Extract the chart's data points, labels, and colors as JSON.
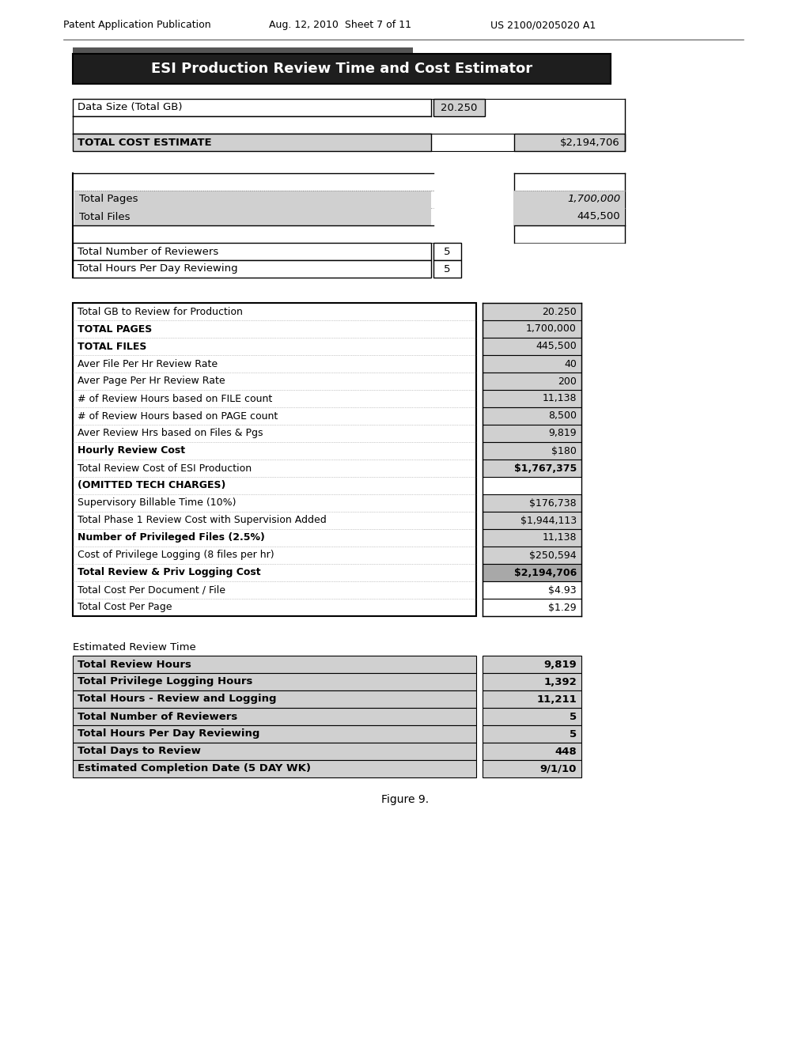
{
  "header_text": "Patent Application Publication    Aug. 12, 2010  Sheet 7 of 11    US 2100/0205020 A1",
  "header_parts": [
    "Patent Application Publication",
    "Aug. 12, 2010  Sheet 7 of 11",
    "US 2100/0205020 A1"
  ],
  "title": "ESI Production Review Time and Cost Estimator",
  "title_bg": "#1e1e1e",
  "title_fg": "#ffffff",
  "shaded_color": "#d0d0d0",
  "highlight_color": "#a8a8a8",
  "border_color": "#000000",
  "section1_rows": [
    {
      "label": "Data Size (Total GB)",
      "value": "20.250",
      "bold_label": false,
      "bold_value": false,
      "shade_label": false,
      "shade_value": true,
      "value_align": "mid"
    },
    {
      "label": "",
      "value": "",
      "bold_label": false,
      "bold_value": false,
      "shade_label": false,
      "shade_value": false,
      "value_align": "none"
    },
    {
      "label": "TOTAL COST ESTIMATE",
      "value": "$2,194,706",
      "bold_label": true,
      "bold_value": false,
      "shade_label": true,
      "shade_value": true,
      "value_align": "right"
    }
  ],
  "section2_rows": [
    {
      "label": "",
      "value": "",
      "shade_label": false,
      "shade_value": false,
      "value_align": "none"
    },
    {
      "label": "Total Pages",
      "value": "1,700,000",
      "bold_label": false,
      "bold_value": false,
      "shade_label": true,
      "shade_value": true,
      "value_align": "right",
      "italic_value": true
    },
    {
      "label": "Total Files",
      "value": "445,500",
      "bold_label": false,
      "bold_value": false,
      "shade_label": true,
      "shade_value": true,
      "value_align": "right",
      "italic_value": false
    },
    {
      "label": "",
      "value": "",
      "shade_label": false,
      "shade_value": false,
      "value_align": "none"
    },
    {
      "label": "Total Number of Reviewers",
      "value": "5",
      "bold_label": false,
      "bold_value": false,
      "shade_label": false,
      "shade_value": false,
      "value_align": "mid"
    },
    {
      "label": "Total Hours Per Day Reviewing",
      "value": "5",
      "bold_label": false,
      "bold_value": false,
      "shade_label": false,
      "shade_value": false,
      "value_align": "mid"
    }
  ],
  "section3_rows": [
    {
      "label": "Total GB to Review for Production",
      "value": "20.250",
      "bold_label": false,
      "bold_value": false,
      "shade_label": false,
      "shade_value": true
    },
    {
      "label": "TOTAL PAGES",
      "value": "1,700,000",
      "bold_label": true,
      "bold_value": false,
      "shade_label": true,
      "shade_value": true
    },
    {
      "label": "TOTAL FILES",
      "value": "445,500",
      "bold_label": true,
      "bold_value": false,
      "shade_label": true,
      "shade_value": true
    },
    {
      "label": "Aver File Per Hr Review Rate",
      "value": "40",
      "bold_label": false,
      "bold_value": false,
      "shade_label": false,
      "shade_value": true
    },
    {
      "label": "Aver Page Per Hr Review Rate",
      "value": "200",
      "bold_label": false,
      "bold_value": false,
      "shade_label": false,
      "shade_value": true
    },
    {
      "label": "# of Review Hours based on FILE count",
      "value": "11,138",
      "bold_label": false,
      "bold_value": false,
      "shade_label": false,
      "shade_value": true
    },
    {
      "label": "# of Review Hours based on PAGE count",
      "value": "8,500",
      "bold_label": false,
      "bold_value": false,
      "shade_label": false,
      "shade_value": true
    },
    {
      "label": "Aver Review Hrs based on Files & Pgs",
      "value": "9,819",
      "bold_label": false,
      "bold_value": false,
      "shade_label": false,
      "shade_value": true
    },
    {
      "label": "Hourly Review Cost",
      "value": "$180",
      "bold_label": true,
      "bold_value": false,
      "shade_label": false,
      "shade_value": true
    },
    {
      "label": "Total Review Cost of ESI Production",
      "value": "$1,767,375",
      "bold_label": false,
      "bold_value": true,
      "shade_label": false,
      "shade_value": true
    },
    {
      "label": "(OMITTED TECH CHARGES)",
      "value": "",
      "bold_label": true,
      "bold_value": false,
      "shade_label": true,
      "shade_value": false
    },
    {
      "label": "Supervisory Billable Time (10%)",
      "value": "$176,738",
      "bold_label": false,
      "bold_value": false,
      "shade_label": false,
      "shade_value": true
    },
    {
      "label": "Total Phase 1 Review Cost with Supervision Added",
      "value": "$1,944,113",
      "bold_label": false,
      "bold_value": false,
      "shade_label": false,
      "shade_value": true
    },
    {
      "label": "Number of Privileged Files (2.5%)",
      "value": "11,138",
      "bold_label": true,
      "bold_value": false,
      "shade_label": false,
      "shade_value": true
    },
    {
      "label": "Cost of Privilege Logging (8 files per hr)",
      "value": "$250,594",
      "bold_label": false,
      "bold_value": false,
      "shade_label": false,
      "shade_value": true
    },
    {
      "label": "Total Review & Priv Logging Cost",
      "value": "$2,194,706",
      "bold_label": true,
      "bold_value": true,
      "shade_label": false,
      "shade_value": true,
      "highlight_value": true
    },
    {
      "label": "Total Cost Per Document / File",
      "value": "$4.93",
      "bold_label": false,
      "bold_value": false,
      "shade_label": false,
      "shade_value": false
    },
    {
      "label": "Total Cost Per Page",
      "value": "$1.29",
      "bold_label": false,
      "bold_value": false,
      "shade_label": false,
      "shade_value": false
    }
  ],
  "section4_header": "Estimated Review Time",
  "section4_rows": [
    {
      "label": "Total Review Hours",
      "value": "9,819",
      "bold": true,
      "shade_label": true,
      "shade_value": true
    },
    {
      "label": "Total Privilege Logging Hours",
      "value": "1,392",
      "bold": true,
      "shade_label": true,
      "shade_value": true
    },
    {
      "label": "Total Hours - Review and Logging",
      "value": "11,211",
      "bold": true,
      "shade_label": true,
      "shade_value": true
    },
    {
      "label": "Total Number of Reviewers",
      "value": "5",
      "bold": true,
      "shade_label": true,
      "shade_value": true
    },
    {
      "label": "Total Hours Per Day Reviewing",
      "value": "5",
      "bold": true,
      "shade_label": true,
      "shade_value": true
    },
    {
      "label": "Total Days to Review",
      "value": "448",
      "bold": true,
      "shade_label": true,
      "shade_value": true
    },
    {
      "label": "Estimated Completion Date (5 DAY WK)",
      "value": "9/1/10",
      "bold": true,
      "shade_label": true,
      "shade_value": true
    }
  ],
  "figure_caption": "Figure 9."
}
